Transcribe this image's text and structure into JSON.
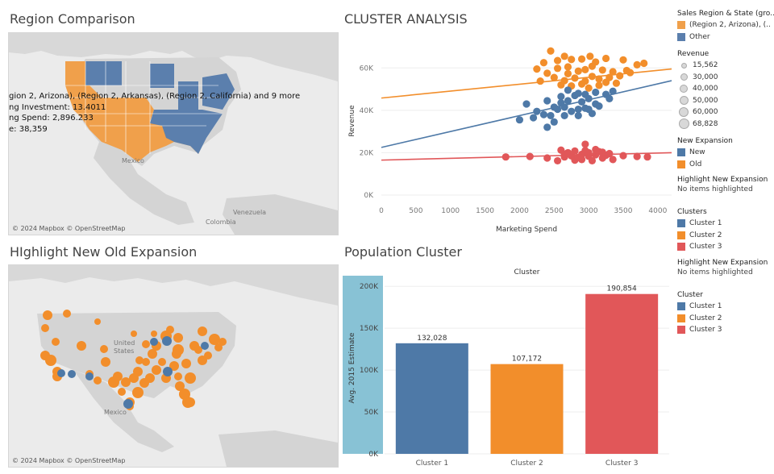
{
  "titles": {
    "region_comparison": "Region Comparison",
    "cluster_analysis": "CLUSTER ANALYSIS",
    "highlight_expansion": "HIghlight New Old Expansion",
    "population_cluster": "Population Cluster"
  },
  "region_map": {
    "credit": "© 2024 Mapbox © OpenStreetMap",
    "place_labels": [
      "Mexico",
      "Venezuela",
      "Colombia"
    ],
    "tooltip": [
      "gion 2, Arizona), (Region 2, Arkansas), (Region 2, California) and 9 more",
      "ng Investment: 13.4011",
      "ng Spend: 2,896.233",
      "e: 38,359"
    ],
    "colors": {
      "region2": "#f0a04b",
      "other": "#5b7fad"
    }
  },
  "expansion_map": {
    "credit": "© 2024 Mapbox © OpenStreetMap",
    "place_labels": [
      "United States",
      "Mexico"
    ],
    "colors": {
      "old": "#f28e2b",
      "new": "#4e79a7"
    }
  },
  "scatter_chart": {
    "chart_data": {
      "type": "scatter",
      "xlabel": "Marketing Spend",
      "ylabel": "Revenue",
      "xlim": [
        0,
        4200
      ],
      "ylim": [
        0,
        70000
      ],
      "xticks": [
        "0",
        "500",
        "1000",
        "1500",
        "2000",
        "2500",
        "3000",
        "3500",
        "4000"
      ],
      "yticks": [
        "0K",
        "20K",
        "40K",
        "60K"
      ],
      "series": [
        {
          "color": "#f28e2b",
          "trend": [
            [
              0,
              45800
            ],
            [
              4200,
              59500
            ]
          ],
          "points": [
            [
              2450,
              68000
            ],
            [
              2650,
              65500
            ],
            [
              2350,
              62500
            ],
            [
              2550,
              63500
            ],
            [
              2750,
              64000
            ],
            [
              2900,
              64200
            ],
            [
              3100,
              62800
            ],
            [
              3250,
              64500
            ],
            [
              3500,
              63800
            ],
            [
              3700,
              61500
            ],
            [
              2250,
              59500
            ],
            [
              2400,
              57500
            ],
            [
              2550,
              59800
            ],
            [
              2700,
              60500
            ],
            [
              2850,
              58500
            ],
            [
              2950,
              59200
            ],
            [
              3050,
              60800
            ],
            [
              3200,
              59000
            ],
            [
              3350,
              58200
            ],
            [
              3550,
              58800
            ],
            [
              2500,
              55500
            ],
            [
              2650,
              54000
            ],
            [
              2800,
              55200
            ],
            [
              2950,
              53800
            ],
            [
              3050,
              56000
            ],
            [
              3150,
              54800
            ],
            [
              3300,
              55500
            ],
            [
              3400,
              52800
            ],
            [
              2600,
              52000
            ],
            [
              2750,
              51500
            ],
            [
              2900,
              52400
            ],
            [
              3000,
              50500
            ],
            [
              3150,
              51800
            ],
            [
              3250,
              53200
            ],
            [
              3450,
              56300
            ],
            [
              2700,
              57300
            ],
            [
              3600,
              57800
            ],
            [
              3800,
              62200
            ],
            [
              2300,
              53800
            ],
            [
              3020,
              65500
            ]
          ]
        },
        {
          "color": "#4e79a7",
          "trend": [
            [
              0,
              22500
            ],
            [
              4200,
              54000
            ]
          ],
          "points": [
            [
              2100,
              43000
            ],
            [
              2250,
              39500
            ],
            [
              2400,
              44500
            ],
            [
              2500,
              41500
            ],
            [
              2600,
              46500
            ],
            [
              2700,
              49500
            ],
            [
              2800,
              47000
            ],
            [
              2900,
              44000
            ],
            [
              3000,
              45500
            ],
            [
              3100,
              43000
            ],
            [
              3250,
              47500
            ],
            [
              3350,
              49000
            ],
            [
              2200,
              36500
            ],
            [
              2350,
              38000
            ],
            [
              2450,
              37500
            ],
            [
              2550,
              40500
            ],
            [
              2650,
              41500
            ],
            [
              2750,
              39500
            ],
            [
              2850,
              40500
            ],
            [
              2950,
              41000
            ],
            [
              3050,
              38500
            ],
            [
              3150,
              42000
            ],
            [
              2500,
              34500
            ],
            [
              2600,
              43500
            ],
            [
              2700,
              44500
            ],
            [
              2850,
              48000
            ],
            [
              2950,
              47500
            ],
            [
              3100,
              48500
            ],
            [
              3300,
              45500
            ],
            [
              2400,
              32000
            ],
            [
              2000,
              35500
            ],
            [
              2850,
              37500
            ],
            [
              3000,
              40500
            ],
            [
              2650,
              37500
            ]
          ]
        },
        {
          "color": "#e15759",
          "trend": [
            [
              0,
              16500
            ],
            [
              4200,
              20000
            ]
          ],
          "points": [
            [
              1800,
              18000
            ],
            [
              2150,
              18200
            ],
            [
              2400,
              17500
            ],
            [
              2550,
              16200
            ],
            [
              2650,
              18000
            ],
            [
              2700,
              20000
            ],
            [
              2750,
              18500
            ],
            [
              2800,
              16500
            ],
            [
              2850,
              17800
            ],
            [
              2900,
              19200
            ],
            [
              2950,
              21000
            ],
            [
              3000,
              18300
            ],
            [
              3050,
              16200
            ],
            [
              3100,
              19000
            ],
            [
              3150,
              20500
            ],
            [
              3200,
              17500
            ],
            [
              3250,
              18800
            ],
            [
              3350,
              16800
            ],
            [
              3500,
              18600
            ],
            [
              3700,
              18200
            ],
            [
              3850,
              18000
            ],
            [
              2950,
              24000
            ],
            [
              2650,
              19300
            ],
            [
              2900,
              16800
            ],
            [
              3000,
              20000
            ],
            [
              3100,
              21500
            ],
            [
              3200,
              20200
            ],
            [
              2800,
              20800
            ],
            [
              2600,
              21200
            ],
            [
              3300,
              19600
            ]
          ]
        }
      ]
    }
  },
  "bar_chart": {
    "chart_data": {
      "type": "bar",
      "title": "Cluster",
      "ylabel": "Avg. 2015 Estimate",
      "ylim": [
        0,
        205000
      ],
      "yticks": [
        "0K",
        "50K",
        "100K",
        "150K",
        "200K"
      ],
      "categories": [
        "Cluster 1",
        "Cluster 2",
        "Cluster 3"
      ],
      "values": [
        132028,
        107172,
        190854
      ],
      "value_labels": [
        "132,028",
        "107,172",
        "190,854"
      ],
      "colors": [
        "#4e79a7",
        "#f28e2b",
        "#e15759"
      ]
    }
  },
  "legends": {
    "sales_region": {
      "title": "Sales Region & State (gro..",
      "items": [
        {
          "label": "(Region 2, Arizona), (..",
          "color": "#f0a04b"
        },
        {
          "label": "Other",
          "color": "#5b7fad"
        }
      ]
    },
    "revenue": {
      "title": "Revenue",
      "items": [
        "15,562",
        "30,000",
        "40,000",
        "50,000",
        "60,000",
        "68,828"
      ]
    },
    "new_expansion": {
      "title": "New Expansion",
      "items": [
        {
          "label": "New",
          "color": "#4e79a7"
        },
        {
          "label": "Old",
          "color": "#f28e2b"
        }
      ]
    },
    "highlight1": {
      "title": "Highlight New Expansion",
      "none": "No items highlighted"
    },
    "clusters": {
      "title": "Clusters",
      "items": [
        {
          "label": "Cluster 1",
          "color": "#4e79a7"
        },
        {
          "label": "Cluster 2",
          "color": "#f28e2b"
        },
        {
          "label": "Cluster 3",
          "color": "#e15759"
        }
      ]
    },
    "highlight2": {
      "title": "Highlight New Expansion",
      "none": "No items highlighted"
    },
    "cluster": {
      "title": "Cluster",
      "items": [
        {
          "label": "Cluster 1",
          "color": "#4e79a7"
        },
        {
          "label": "Cluster 2",
          "color": "#f28e2b"
        },
        {
          "label": "Cluster 3",
          "color": "#e15759"
        }
      ]
    }
  }
}
